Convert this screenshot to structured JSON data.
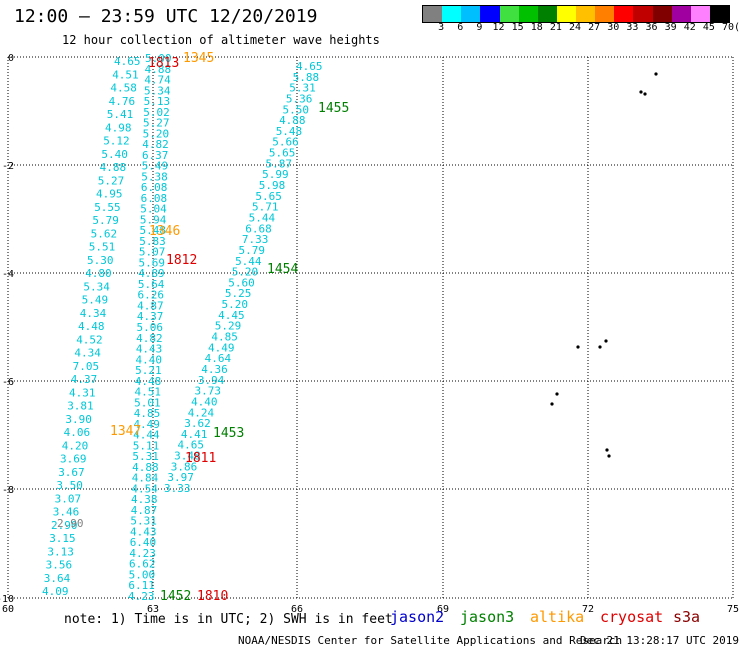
{
  "title": "12:00 – 23:59 UTC 12/20/2019",
  "subtitle": "12 hour collection of altimeter wave heights",
  "color_scale": {
    "colors": [
      "#808080",
      "#00ffff",
      "#00bfff",
      "#0000ff",
      "#40e040",
      "#00c000",
      "#008000",
      "#ffff00",
      "#ffc000",
      "#ff8000",
      "#ff0000",
      "#c00000",
      "#800000",
      "#a000a0",
      "#ff80ff",
      "#000000"
    ],
    "labels": [
      "3",
      "6",
      "9",
      "12",
      "15",
      "18",
      "21",
      "24",
      "27",
      "30",
      "33",
      "36",
      "39",
      "42",
      "45",
      "70"
    ],
    "unit": "(ft)"
  },
  "axes": {
    "x_ticks": [
      "60",
      "63",
      "66",
      "69",
      "72",
      "75"
    ],
    "y_ticks": [
      "0",
      "-2",
      "-4",
      "-6",
      "-8",
      "-10"
    ]
  },
  "passes": [
    {
      "time": "1813",
      "mission": "cryosat",
      "color": "#e00000"
    },
    {
      "time": "1345",
      "mission": "altika",
      "color": "#ff9900"
    },
    {
      "time": "1455",
      "mission": "jason3",
      "color": "#008000"
    },
    {
      "time": "1346",
      "mission": "altika",
      "color": "#ff9900"
    },
    {
      "time": "1812",
      "mission": "cryosat",
      "color": "#e00000"
    },
    {
      "time": "1454",
      "mission": "jason3",
      "color": "#008000"
    },
    {
      "time": "1347",
      "mission": "altika",
      "color": "#ff9900"
    },
    {
      "time": "1453",
      "mission": "jason3",
      "color": "#008000"
    },
    {
      "time": "1811",
      "mission": "cryosat",
      "color": "#e00000"
    },
    {
      "time": "1452",
      "mission": "jason3",
      "color": "#008000"
    },
    {
      "time": "1810",
      "mission": "cryosat",
      "color": "#e00000"
    }
  ],
  "track_a_values": [
    "4.65",
    "4.51",
    "4.58",
    "4.76",
    "5.41",
    "4.98",
    "5.12",
    "5.40",
    "4.88",
    "5.27",
    "4.95",
    "5.55",
    "5.79",
    "5.62",
    "5.51",
    "5.30",
    "4.80",
    "5.34",
    "5.49",
    "4.34",
    "4.48",
    "4.52",
    "4.34",
    "7.05",
    "4.37",
    "4.31",
    "3.81",
    "3.90",
    "4.06",
    "4.20",
    "3.69",
    "3.67",
    "3.50",
    "3.07",
    "3.46",
    "2.90",
    "3.15",
    "3.13",
    "3.56",
    "3.64",
    "4.09"
  ],
  "track_b_values": [
    "5.00",
    "4.88",
    "4.74",
    "5.34",
    "5.13",
    "5.02",
    "5.27",
    "5.20",
    "4.82",
    "6.37",
    "5.49",
    "5.38",
    "6.08",
    "6.08",
    "5.04",
    "5.94",
    "5.48",
    "5.83",
    "5.07",
    "5.69",
    "4.89",
    "5.64",
    "6.26",
    "4.87",
    "4.37",
    "5.06",
    "4.82",
    "4.43",
    "4.40",
    "5.21",
    "4.48",
    "4.51",
    "5.01",
    "4.85",
    "4.49",
    "4.44",
    "5.11",
    "5.31",
    "4.88",
    "4.84",
    "4.54",
    "4.38",
    "4.87",
    "5.31",
    "4.43",
    "6.40",
    "4.23",
    "6.62",
    "5.00",
    "6.11",
    "4.23"
  ],
  "track_c_values": [
    "4.65",
    "5.88",
    "5.31",
    "5.36",
    "5.50",
    "4.88",
    "5.48",
    "5.66",
    "5.65",
    "5.87",
    "5.99",
    "5.98",
    "5.65",
    "5.71",
    "5.44",
    "6.68",
    "7.33",
    "5.79",
    "5.44",
    "5.20",
    "5.60",
    "5.25",
    "5.20",
    "4.45",
    "5.29",
    "4.85",
    "4.49",
    "4.64",
    "4.36",
    "3.94",
    "3.73",
    "4.40",
    "4.24",
    "3.62",
    "4.41",
    "4.65",
    "3.48",
    "3.86",
    "3.97",
    "3.33"
  ],
  "gray_value": "2.90",
  "note": "note: 1) Time is in UTC; 2) SWH is in feet",
  "legend": [
    {
      "label": "jason2",
      "color": "#0000cc"
    },
    {
      "label": "jason3",
      "color": "#008000"
    },
    {
      "label": "altika",
      "color": "#ff9900"
    },
    {
      "label": "cryosat",
      "color": "#e00000"
    },
    {
      "label": "s3a",
      "color": "#8b0000"
    }
  ],
  "credit": "NOAA/NESDIS Center for Satellite Applications and Research",
  "timestamp": "Dec 21 13:28:17 UTC 2019"
}
